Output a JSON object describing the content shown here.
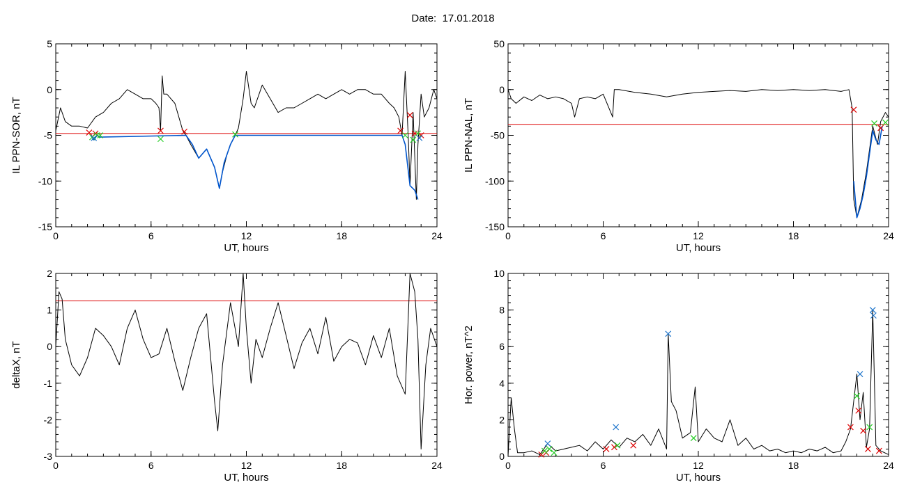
{
  "header": {
    "date_label": "Date:",
    "date_value": "17.01.2018"
  },
  "chart_data": [
    {
      "type": "line",
      "ylabel": "IL PPN-SOR, nT",
      "xlabel": "UT, hours",
      "xlim": [
        0,
        24
      ],
      "ylim": [
        -15,
        5
      ],
      "xticks": [
        "0",
        "6",
        "12",
        "18",
        "24"
      ],
      "yticks": [
        "-15",
        "-10",
        "-5",
        "0",
        "5"
      ],
      "threshold": -4.8,
      "series": [
        {
          "color": "#000000",
          "x": [
            0,
            0.3,
            0.6,
            1,
            1.5,
            2,
            2.5,
            3,
            3.5,
            4,
            4.5,
            5,
            5.5,
            6,
            6.3,
            6.5,
            6.6,
            6.7,
            6.8,
            7,
            7.5,
            8,
            8.2,
            8.5,
            9,
            9.5,
            10,
            10.3,
            10.5,
            10.8,
            11,
            11.3,
            11.5,
            11.8,
            12,
            12.3,
            12.5,
            13,
            13.5,
            14,
            14.5,
            15,
            15.5,
            16,
            16.5,
            17,
            17.5,
            18,
            18.5,
            19,
            19.5,
            20,
            20.5,
            21,
            21.3,
            21.6,
            21.8,
            22,
            22.2,
            22.3,
            22.5,
            22.7,
            22.8,
            23,
            23.2,
            23.5,
            23.8,
            24
          ],
          "y": [
            -4.5,
            -2,
            -3.5,
            -4,
            -4,
            -4.2,
            -3,
            -2.5,
            -1.5,
            -1,
            0,
            -0.5,
            -1,
            -1,
            -1.5,
            -2,
            -4.5,
            1.5,
            -0.5,
            -0.5,
            -1.5,
            -4.5,
            -5,
            -6,
            -7.5,
            -6.5,
            -8.5,
            -10.8,
            -9,
            -7,
            -6,
            -5,
            -4.2,
            -1,
            2,
            -1.5,
            -2,
            0.5,
            -1,
            -2.5,
            -2,
            -2,
            -1.5,
            -1,
            -0.5,
            -1,
            -0.5,
            0,
            -0.5,
            0,
            0,
            -0.5,
            -0.5,
            -1.5,
            -2,
            -3,
            -5,
            2,
            -5.5,
            -10.5,
            -2.5,
            -12,
            -6,
            -0.5,
            -3,
            -2,
            0,
            -1
          ]
        },
        {
          "color": "#0055cc",
          "x": [
            2.2,
            2.4,
            2.6,
            2.8,
            8.2,
            8.6,
            9,
            9.5,
            10,
            10.3,
            10.6,
            11,
            11.3,
            21.8,
            22,
            22.3,
            22.6,
            22.8
          ],
          "y": [
            -5,
            -5.5,
            -5,
            -5.2,
            -5,
            -6,
            -7.5,
            -6.5,
            -8.5,
            -10.8,
            -8,
            -6,
            -5,
            -5,
            -6,
            -10.5,
            -11,
            -12
          ]
        }
      ],
      "markers": {
        "red": [
          [
            2.1,
            -4.7
          ],
          [
            2.5,
            -4.8
          ],
          [
            6.6,
            -4.5
          ],
          [
            8.1,
            -4.6
          ],
          [
            21.7,
            -4.5
          ],
          [
            22.3,
            -2.8
          ],
          [
            22.6,
            -4.8
          ],
          [
            23,
            -5
          ]
        ],
        "green": [
          [
            2.3,
            -5.2
          ],
          [
            2.6,
            -5
          ],
          [
            2.8,
            -5
          ],
          [
            6.6,
            -5.4
          ],
          [
            11.3,
            -4.9
          ],
          [
            22,
            -5
          ],
          [
            22.5,
            -5.5
          ],
          [
            22.8,
            -4.8
          ]
        ],
        "blue": [
          [
            2.4,
            -5.3
          ],
          [
            22.9,
            -5.3
          ]
        ]
      }
    },
    {
      "type": "line",
      "ylabel": "IL PPN-NAL, nT",
      "xlabel": "UT, hours",
      "xlim": [
        0,
        24
      ],
      "ylim": [
        -150,
        50
      ],
      "xticks": [
        "0",
        "6",
        "12",
        "18",
        "24"
      ],
      "yticks": [
        "-150",
        "-100",
        "-50",
        "0",
        "50"
      ],
      "threshold": -38,
      "series": [
        {
          "color": "#000000",
          "x": [
            0,
            0.2,
            0.5,
            1,
            1.5,
            2,
            2.5,
            3,
            3.5,
            4,
            4.2,
            4.5,
            5,
            5.5,
            6,
            6.6,
            6.7,
            7,
            8,
            9,
            10,
            11,
            12,
            13,
            14,
            15,
            16,
            17,
            18,
            19,
            20,
            21,
            21.5,
            21.7,
            21.8,
            22,
            22.3,
            22.6,
            23,
            23.3,
            23.5,
            23.8,
            24
          ],
          "y": [
            0,
            -10,
            -15,
            -8,
            -12,
            -6,
            -10,
            -8,
            -10,
            -15,
            -30,
            -10,
            -8,
            -10,
            -5,
            -30,
            0,
            0,
            -3,
            -5,
            -8,
            -5,
            -3,
            -2,
            -1,
            -2,
            0,
            -1,
            0,
            -1,
            0,
            -2,
            0,
            -20,
            -120,
            -140,
            -120,
            -90,
            -40,
            -60,
            -35,
            -25,
            -30
          ]
        },
        {
          "color": "#0055cc",
          "x": [
            21.8,
            22,
            22.2,
            22.4,
            22.6,
            22.8,
            23,
            23.2,
            23.4,
            23.6
          ],
          "y": [
            -100,
            -140,
            -130,
            -115,
            -95,
            -70,
            -45,
            -55,
            -60,
            -40
          ]
        }
      ],
      "markers": {
        "red": [
          [
            21.8,
            -22
          ],
          [
            23.5,
            -42
          ]
        ],
        "green": [
          [
            23.1,
            -37
          ],
          [
            23.8,
            -36
          ]
        ],
        "blue": []
      }
    },
    {
      "type": "line",
      "ylabel": "deltaX, nT",
      "xlabel": "UT, hours",
      "xlim": [
        0,
        24
      ],
      "ylim": [
        -3,
        2
      ],
      "xticks": [
        "0",
        "6",
        "12",
        "18",
        "24"
      ],
      "yticks": [
        "-3",
        "-2",
        "-1",
        "0",
        "1",
        "2"
      ],
      "threshold": 1.25,
      "series": [
        {
          "color": "#000000",
          "x": [
            0,
            0.2,
            0.4,
            0.6,
            1,
            1.5,
            2,
            2.5,
            3,
            3.5,
            4,
            4.5,
            5,
            5.5,
            6,
            6.5,
            7,
            7.5,
            8,
            8.5,
            9,
            9.5,
            10,
            10.2,
            10.5,
            11,
            11.5,
            11.8,
            12,
            12.3,
            12.6,
            13,
            13.5,
            14,
            14.5,
            15,
            15.5,
            16,
            16.5,
            17,
            17.5,
            18,
            18.5,
            19,
            19.5,
            20,
            20.5,
            21,
            21.5,
            22,
            22.3,
            22.6,
            22.8,
            23,
            23.3,
            23.6,
            24
          ],
          "y": [
            0,
            1.5,
            1.3,
            0.2,
            -0.5,
            -0.8,
            -0.3,
            0.5,
            0.3,
            0,
            -0.5,
            0.5,
            1,
            0.2,
            -0.3,
            -0.2,
            0.5,
            -0.4,
            -1.2,
            -0.3,
            0.5,
            0.9,
            -1.5,
            -2.3,
            -0.5,
            1.2,
            0,
            2,
            0.5,
            -1,
            0.2,
            -0.3,
            0.5,
            1.2,
            0.3,
            -0.6,
            0.1,
            0.5,
            -0.2,
            0.8,
            -0.4,
            0,
            0.2,
            0.1,
            -0.5,
            0.3,
            -0.3,
            0.5,
            -0.8,
            -1.3,
            2,
            1.5,
            0.2,
            -2.8,
            -0.5,
            0.5,
            0
          ]
        }
      ],
      "markers": {
        "red": [],
        "green": [],
        "blue": []
      }
    },
    {
      "type": "line",
      "ylabel": "Hor. power, nT^2",
      "xlabel": "UT, hours",
      "xlim": [
        0,
        24
      ],
      "ylim": [
        0,
        10
      ],
      "xticks": [
        "0",
        "6",
        "12",
        "18",
        "24"
      ],
      "yticks": [
        "0",
        "2",
        "4",
        "6",
        "8",
        "10"
      ],
      "threshold": null,
      "series": [
        {
          "color": "#000000",
          "x": [
            0,
            0.2,
            0.4,
            0.6,
            1,
            1.5,
            2,
            2.5,
            3,
            3.5,
            4,
            4.5,
            5,
            5.5,
            6,
            6.5,
            7,
            7.5,
            8,
            8.5,
            9,
            9.5,
            10,
            10.1,
            10.3,
            10.6,
            11,
            11.5,
            11.8,
            12,
            12.5,
            13,
            13.5,
            14,
            14.5,
            15,
            15.5,
            16,
            16.5,
            17,
            17.5,
            18,
            18.5,
            19,
            19.5,
            20,
            20.5,
            21,
            21.3,
            21.6,
            22,
            22.2,
            22.4,
            22.6,
            22.8,
            23,
            23.2,
            23.5,
            24
          ],
          "y": [
            0,
            3.2,
            1.5,
            0.2,
            0.2,
            0.3,
            0.1,
            0.7,
            0.3,
            0.4,
            0.5,
            0.6,
            0.3,
            0.8,
            0.4,
            0.9,
            0.5,
            1,
            0.8,
            1.2,
            0.6,
            1.5,
            0.4,
            6.7,
            3,
            2.5,
            1,
            1.3,
            3.8,
            0.8,
            1.5,
            1,
            0.8,
            2,
            0.6,
            1,
            0.4,
            0.6,
            0.3,
            0.4,
            0.2,
            0.3,
            0.2,
            0.4,
            0.3,
            0.5,
            0.2,
            0.3,
            0.8,
            1.5,
            4.5,
            2,
            3.5,
            0.5,
            1.5,
            8,
            0.6,
            0.3,
            0.1
          ]
        }
      ],
      "markers": {
        "red": [
          [
            2.1,
            0.1
          ],
          [
            2.4,
            0.2
          ],
          [
            6.2,
            0.4
          ],
          [
            6.7,
            0.5
          ],
          [
            7.9,
            0.6
          ],
          [
            21.6,
            1.6
          ],
          [
            22.1,
            2.5
          ],
          [
            22.4,
            1.4
          ],
          [
            22.7,
            0.4
          ],
          [
            23.4,
            0.3
          ]
        ],
        "green": [
          [
            2.3,
            0.3
          ],
          [
            2.6,
            0.4
          ],
          [
            2.9,
            0.2
          ],
          [
            6.9,
            0.6
          ],
          [
            11.7,
            1
          ],
          [
            22,
            3.3
          ],
          [
            22.8,
            1.6
          ]
        ],
        "blue": [
          [
            2.5,
            0.7
          ],
          [
            6.8,
            1.6
          ],
          [
            10.1,
            6.7
          ],
          [
            22.2,
            4.5
          ],
          [
            23,
            8
          ],
          [
            23.05,
            7.7
          ]
        ]
      }
    }
  ]
}
